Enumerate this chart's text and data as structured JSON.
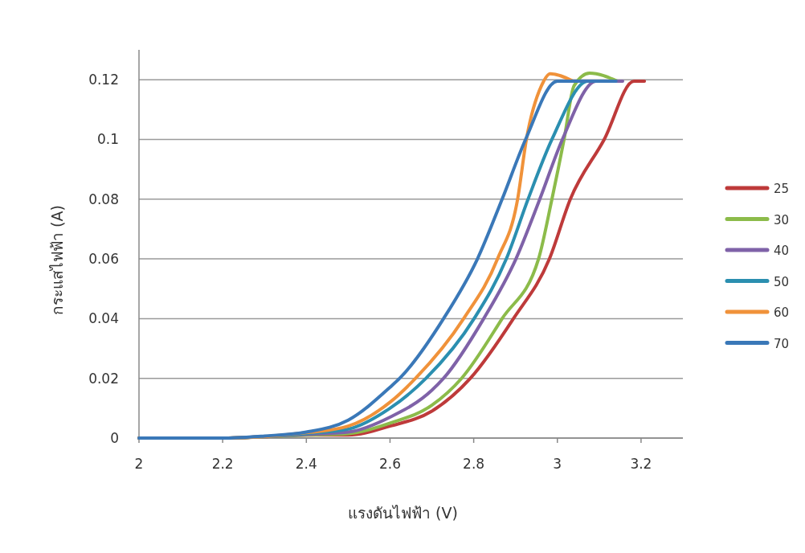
{
  "chart_data": {
    "type": "line",
    "xlabel": "แรงดันไฟฟ้า (V)",
    "ylabel": "กระแสไฟฟ้า (A)",
    "xlim": [
      2,
      3.3
    ],
    "xticks": [
      2,
      2.2,
      2.4,
      2.6,
      2.8,
      3,
      3.2
    ],
    "ylim": [
      0,
      0.13
    ],
    "yticks": [
      0,
      0.02,
      0.04,
      0.06,
      0.08,
      0.1,
      0.12
    ],
    "grid": "y",
    "legend": "right",
    "marker": "none",
    "line_style": "solid",
    "series": [
      {
        "name": "25",
        "color": "#be3a3a",
        "x": [
          2,
          2.2,
          2.3,
          2.4,
          2.5,
          2.6,
          2.7,
          2.792,
          2.895,
          2.981,
          3.031,
          3.112,
          3.183,
          3.208
        ],
        "values": [
          0,
          0,
          0.0005,
          0.001,
          0.001,
          0.004,
          0.009,
          0.02,
          0.04,
          0.06,
          0.08,
          0.1,
          0.1195,
          0.1195
        ]
      },
      {
        "name": "30",
        "color": "#8cbb4a",
        "x": [
          2,
          2.2,
          2.3,
          2.4,
          2.5,
          2.6,
          2.7,
          2.771,
          2.868,
          2.955,
          2.987,
          3.016,
          3.04,
          3.077,
          3.144
        ],
        "values": [
          0,
          0,
          0.0005,
          0.001,
          0.0015,
          0.005,
          0.011,
          0.02,
          0.04,
          0.06,
          0.08,
          0.1,
          0.118,
          0.1222,
          0.1195
        ]
      },
      {
        "name": "40",
        "color": "#7f62a8",
        "x": [
          2,
          2.2,
          2.3,
          2.4,
          2.5,
          2.6,
          2.7,
          2.728,
          2.824,
          2.901,
          2.958,
          3.012,
          3.093,
          3.156
        ],
        "values": [
          0,
          0,
          0.0005,
          0.0012,
          0.002,
          0.007,
          0.016,
          0.02,
          0.04,
          0.06,
          0.08,
          0.1,
          0.1195,
          0.1195
        ]
      },
      {
        "name": "50",
        "color": "#2b8fb0",
        "x": [
          2,
          2.2,
          2.3,
          2.4,
          2.5,
          2.6,
          2.686,
          2.801,
          2.878,
          2.93,
          2.987,
          3.073,
          3.12
        ],
        "values": [
          0,
          0,
          0.0005,
          0.0015,
          0.003,
          0.01,
          0.02,
          0.04,
          0.06,
          0.08,
          0.1,
          0.1195,
          0.1195
        ]
      },
      {
        "name": "60",
        "color": "#f0923a",
        "x": [
          2,
          2.2,
          2.3,
          2.4,
          2.5,
          2.6,
          2.661,
          2.776,
          2.857,
          2.905,
          2.926,
          2.962,
          2.983,
          3.035
        ],
        "values": [
          0,
          0,
          0.0005,
          0.0018,
          0.004,
          0.012,
          0.02,
          0.04,
          0.06,
          0.08,
          0.1,
          0.118,
          0.122,
          0.1197
        ]
      },
      {
        "name": "70",
        "color": "#3a78b8",
        "x": [
          2,
          2.2,
          2.3,
          2.4,
          2.5,
          2.6,
          2.623,
          2.728,
          2.809,
          2.868,
          2.924,
          3,
          3.14
        ],
        "values": [
          0,
          0,
          0.0007,
          0.002,
          0.006,
          0.017,
          0.02,
          0.04,
          0.06,
          0.08,
          0.1,
          0.1195,
          0.1195
        ]
      }
    ]
  }
}
